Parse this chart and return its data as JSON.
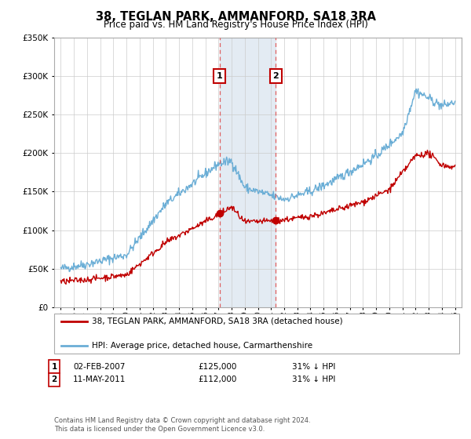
{
  "title": "38, TEGLAN PARK, AMMANFORD, SA18 3RA",
  "subtitle": "Price paid vs. HM Land Registry's House Price Index (HPI)",
  "legend_line1": "38, TEGLAN PARK, AMMANFORD, SA18 3RA (detached house)",
  "legend_line2": "HPI: Average price, detached house, Carmarthenshire",
  "transaction1_date": "02-FEB-2007",
  "transaction1_price": "£125,000",
  "transaction1_hpi": "31% ↓ HPI",
  "transaction2_date": "11-MAY-2011",
  "transaction2_price": "£112,000",
  "transaction2_hpi": "31% ↓ HPI",
  "footnote": "Contains HM Land Registry data © Crown copyright and database right 2024.\nThis data is licensed under the Open Government Licence v3.0.",
  "hpi_color": "#6baed6",
  "price_color": "#c00000",
  "shade_color": "#dce6f1",
  "vline_color": "#e06060",
  "grid_color": "#cccccc",
  "bg_color": "#ffffff",
  "ylim": [
    0,
    350000
  ],
  "yticks": [
    0,
    50000,
    100000,
    150000,
    200000,
    250000,
    300000,
    350000
  ],
  "transaction1_x": 2007.08,
  "transaction2_x": 2011.36,
  "shade_x1": 2007.08,
  "shade_x2": 2011.36,
  "xlim_left": 1994.5,
  "xlim_right": 2025.5
}
